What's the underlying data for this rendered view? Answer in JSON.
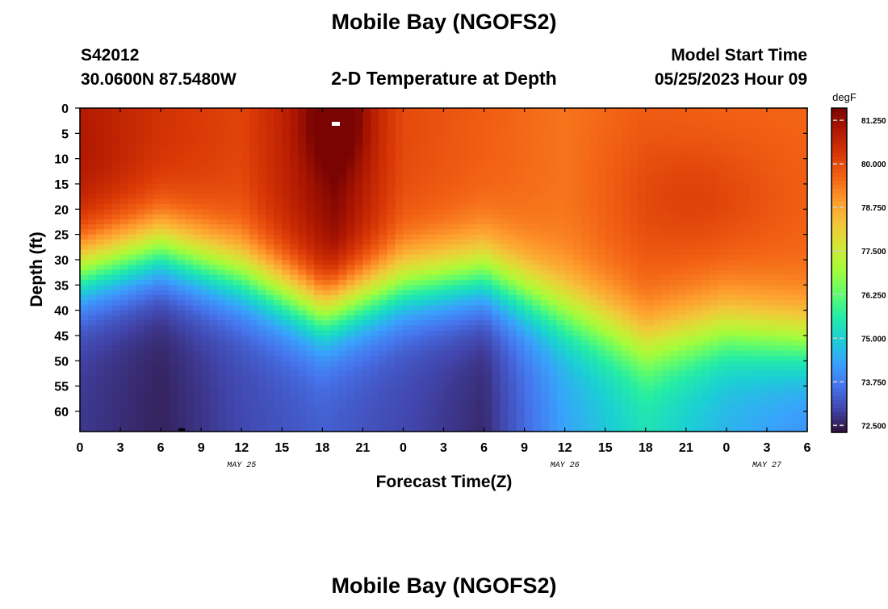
{
  "page": {
    "title_top": "Mobile Bay (NGOFS2)",
    "title_bottom": "Mobile Bay (NGOFS2)",
    "station": "S42012",
    "coords": "30.0600N  87.5480W",
    "subtitle": "2-D Temperature at Depth",
    "model_label": "Model Start Time",
    "model_time": "05/25/2023 Hour 09"
  },
  "chart_data": {
    "type": "heatmap",
    "title": "2-D Temperature at Depth",
    "xlabel": "Forecast Time(Z)",
    "ylabel": "Depth (ft)",
    "x_ticks": [
      "0",
      "3",
      "6",
      "9",
      "12",
      "15",
      "18",
      "21",
      "0",
      "3",
      "6",
      "9",
      "12",
      "15",
      "18",
      "21",
      "0",
      "3",
      "6"
    ],
    "x_range_hours": [
      0,
      54
    ],
    "date_labels": [
      {
        "label": "MAY 25",
        "hour": 12
      },
      {
        "label": "MAY 26",
        "hour": 36
      },
      {
        "label": "MAY 27",
        "hour": 51
      }
    ],
    "y_ticks": [
      "0",
      "5",
      "10",
      "15",
      "20",
      "25",
      "30",
      "35",
      "40",
      "45",
      "50",
      "55",
      "60"
    ],
    "y_range_ft": [
      0,
      64
    ],
    "colorbar": {
      "unit": "degF",
      "range": [
        72.3,
        81.6
      ],
      "ticks": [
        "81.250",
        "80.000",
        "78.750",
        "77.500",
        "76.250",
        "75.000",
        "73.750",
        "72.500"
      ],
      "tick_values": [
        81.25,
        80.0,
        78.75,
        77.5,
        76.25,
        75.0,
        73.75,
        72.5
      ],
      "colors": [
        "#30123b",
        "#4145ab",
        "#4675ed",
        "#39a2fc",
        "#1bcfd4",
        "#24eca6",
        "#61fc6c",
        "#a4fc3b",
        "#d1e834",
        "#f3c63a",
        "#fe9b2d",
        "#f36315",
        "#d93806",
        "#b11901",
        "#7a0402"
      ]
    },
    "thermocline_hours": [
      0,
      6,
      12,
      18,
      24,
      30,
      36,
      42,
      48,
      54
    ],
    "thermocline_depth_ft": [
      32,
      28,
      33,
      40,
      35,
      33,
      40,
      47,
      44,
      46
    ],
    "surface_temp_profile": {
      "hours": [
        0,
        6,
        12,
        19,
        24,
        30,
        36,
        42,
        48,
        54
      ],
      "temps": [
        80.8,
        80.4,
        80.1,
        81.5,
        80.0,
        79.7,
        79.4,
        79.7,
        79.6,
        79.6
      ]
    },
    "deep_temp_profile": {
      "hours": [
        0,
        6,
        12,
        18,
        24,
        30,
        36,
        42,
        48,
        54
      ],
      "temps": [
        72.8,
        72.5,
        73.0,
        73.3,
        73.0,
        72.6,
        74.3,
        75.3,
        74.5,
        74.0
      ]
    }
  }
}
